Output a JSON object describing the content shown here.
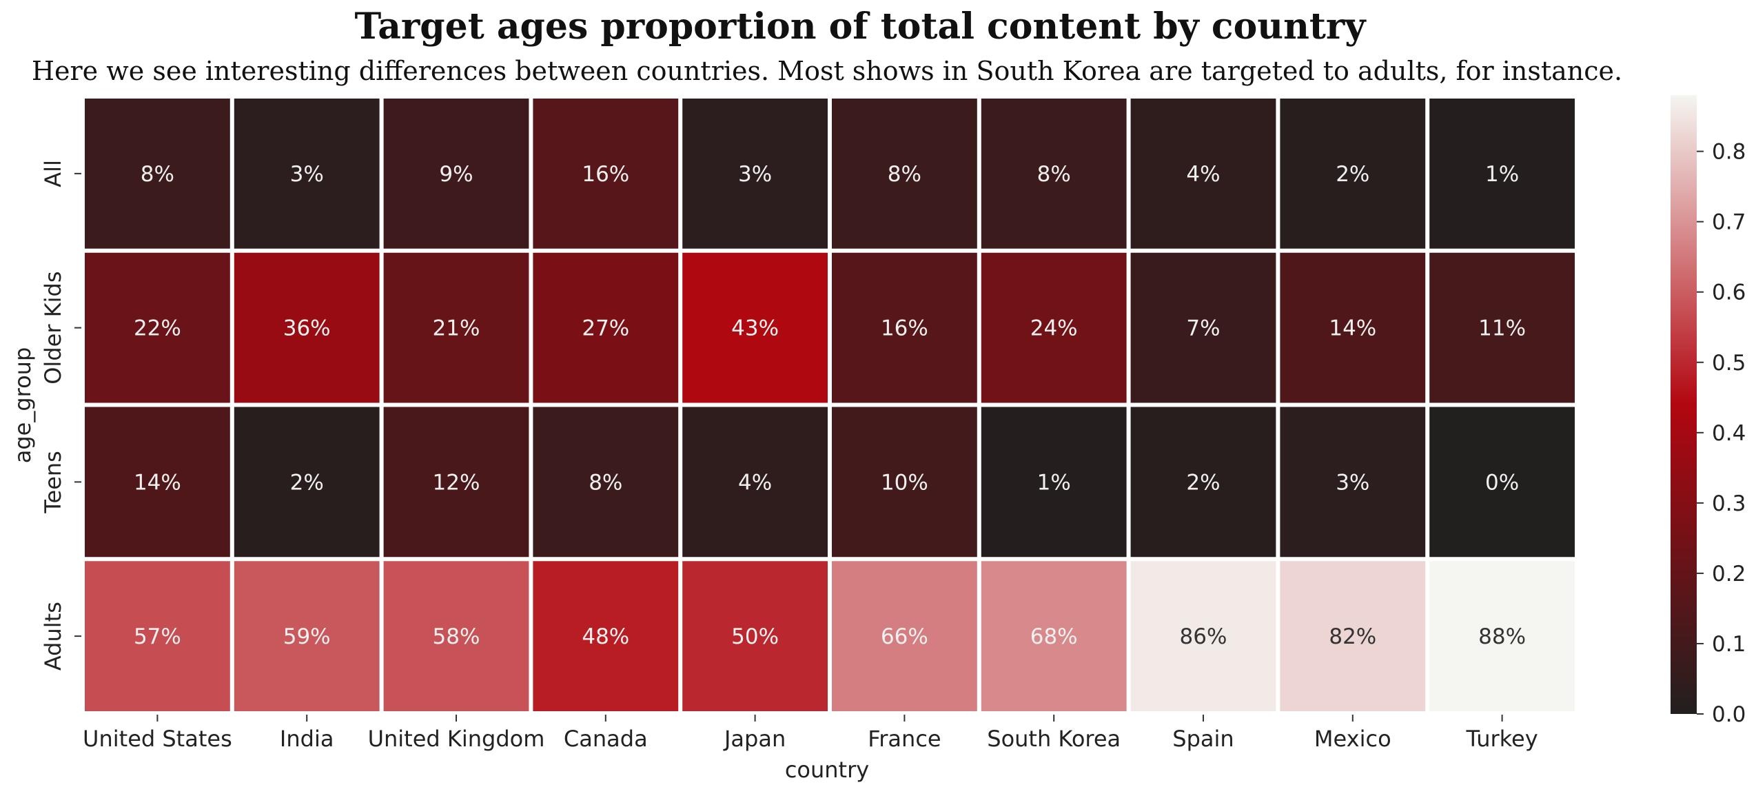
{
  "chart_data": {
    "type": "heatmap",
    "title": "Target ages proportion of total content by country",
    "subtitle": "Here we see interesting differences between countries. Most shows in South Korea are targeted to adults, for instance.",
    "xlabel": "country",
    "ylabel": "age_group",
    "columns": [
      "United States",
      "India",
      "United Kingdom",
      "Canada",
      "Japan",
      "France",
      "South Korea",
      "Spain",
      "Mexico",
      "Turkey"
    ],
    "rows": [
      "All",
      "Older Kids",
      "Teens",
      "Adults"
    ],
    "values": [
      [
        0.08,
        0.03,
        0.09,
        0.16,
        0.03,
        0.08,
        0.08,
        0.04,
        0.02,
        0.01
      ],
      [
        0.22,
        0.36,
        0.21,
        0.27,
        0.43,
        0.16,
        0.24,
        0.07,
        0.14,
        0.11
      ],
      [
        0.14,
        0.02,
        0.12,
        0.08,
        0.04,
        0.1,
        0.01,
        0.02,
        0.03,
        0.0
      ],
      [
        0.57,
        0.59,
        0.58,
        0.48,
        0.5,
        0.66,
        0.68,
        0.86,
        0.82,
        0.88
      ]
    ],
    "labels": [
      [
        "8%",
        "3%",
        "9%",
        "16%",
        "3%",
        "8%",
        "8%",
        "4%",
        "2%",
        "1%"
      ],
      [
        "22%",
        "36%",
        "21%",
        "27%",
        "43%",
        "16%",
        "24%",
        "7%",
        "14%",
        "11%"
      ],
      [
        "14%",
        "2%",
        "12%",
        "8%",
        "4%",
        "10%",
        "1%",
        "2%",
        "3%",
        "0%"
      ],
      [
        "57%",
        "59%",
        "58%",
        "48%",
        "50%",
        "66%",
        "68%",
        "86%",
        "82%",
        "88%"
      ]
    ],
    "colorbar": {
      "ticks": [
        "0.0",
        "0.1",
        "0.2",
        "0.3",
        "0.4",
        "0.5",
        "0.6",
        "0.7",
        "0.8"
      ],
      "range": [
        0,
        0.88
      ]
    },
    "colors": {
      "low": "#221f1f",
      "mid": "#b20710",
      "high": "#f5f5f1"
    }
  }
}
